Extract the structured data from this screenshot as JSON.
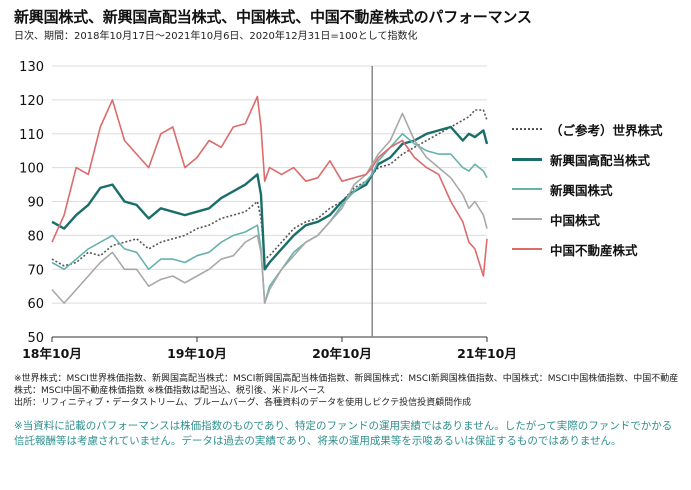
{
  "title": "新興国株式、新興国高配当株式、中国株式、中国不動産株式のパフォーマンス",
  "subtitle": "日次、期間：2018年10月17日～2021年10月6日、2020年12月31日=100として指数化",
  "notes": {
    "line1": "※世界株式：MSCI世界株価指数、新興国高配当株式：MSCI新興国高配当株価指数、新興国株式：MSCI新興国株価指数、中国株式：MSCI中国株価指数、中国不動産株式：MSCI中国不動産株価指数 ※株価指数は配当込、税引後、米ドルベース",
    "line2": "出所：リフィニティブ・データストリーム、ブルームバーグ、各種資料のデータを使用しピクテ投信投資顧問作成"
  },
  "disclaimer": "※当資料に記載のパフォーマンスは株価指数のものであり、特定のファンドの運用実績ではありません。したがって実際のファンドでかかる信託報酬等は考慮されていません。データは過去の実績であり、将来の運用成果等を示唆あるいは保証するものではありません。",
  "chart_data": {
    "type": "line",
    "title": "新興国株式、新興国高配当株式、中国株式、中国不動産株式のパフォーマンス",
    "ylim": [
      50,
      130
    ],
    "yticks": [
      50,
      60,
      70,
      80,
      90,
      100,
      110,
      120,
      130
    ],
    "x_tick_labels": [
      "18年10月",
      "19年10月",
      "20年10月",
      "21年10月"
    ],
    "x_tick_positions": [
      0,
      12,
      24,
      36
    ],
    "xlim": [
      0,
      36
    ],
    "reference_x": 26.5,
    "grid": "horizontal",
    "legend_position": "right",
    "x_unit": "months since 2018-10",
    "x": [
      0,
      1,
      2,
      3,
      4,
      5,
      6,
      7,
      8,
      9,
      10,
      11,
      12,
      13,
      14,
      15,
      16,
      17,
      17.3,
      17.6,
      18,
      19,
      20,
      21,
      22,
      23,
      24,
      25,
      26,
      26.5,
      27,
      28,
      29,
      30,
      31,
      32,
      33,
      34,
      34.5,
      35,
      35.7,
      36
    ],
    "series": [
      {
        "name": "（ご参考）世界株式",
        "color": "#555555",
        "dash": "2,2",
        "values": [
          73,
          71,
          72,
          75,
          74,
          77,
          78,
          79,
          76,
          78,
          79,
          80,
          82,
          83,
          85,
          86,
          87,
          90,
          85,
          73,
          74,
          78,
          82,
          84,
          85,
          88,
          90,
          94,
          96,
          98,
          100,
          101,
          104,
          106,
          108,
          110,
          112,
          114,
          115,
          117,
          117,
          114
        ]
      },
      {
        "name": "新興国高配当株式",
        "color": "#1a6e6a",
        "dash": "",
        "values": [
          84,
          82,
          86,
          89,
          94,
          95,
          90,
          89,
          85,
          88,
          87,
          86,
          87,
          88,
          91,
          93,
          95,
          98,
          92,
          70,
          72,
          76,
          80,
          83,
          84,
          86,
          90,
          93,
          95,
          98,
          101,
          103,
          107,
          108,
          110,
          111,
          112,
          108,
          110,
          109,
          111,
          107
        ]
      },
      {
        "name": "新興国株式",
        "color": "#66b3ad",
        "dash": "",
        "values": [
          72,
          70,
          73,
          76,
          78,
          80,
          76,
          75,
          70,
          73,
          73,
          72,
          74,
          75,
          78,
          80,
          81,
          83,
          76,
          60,
          65,
          70,
          75,
          78,
          80,
          84,
          89,
          93,
          96,
          98,
          102,
          106,
          110,
          107,
          105,
          104,
          104,
          100,
          99,
          101,
          99,
          97
        ]
      },
      {
        "name": "中国株式",
        "color": "#a8a8a8",
        "dash": "",
        "values": [
          64,
          60,
          64,
          68,
          72,
          75,
          70,
          70,
          65,
          67,
          68,
          66,
          68,
          70,
          73,
          74,
          78,
          80,
          75,
          60,
          64,
          70,
          74,
          78,
          80,
          84,
          88,
          95,
          98,
          101,
          104,
          108,
          116,
          108,
          103,
          100,
          97,
          92,
          88,
          90,
          86,
          82
        ]
      },
      {
        "name": "中国不動産株式",
        "color": "#dd6b6b",
        "dash": "",
        "values": [
          78,
          86,
          100,
          98,
          112,
          120,
          108,
          104,
          100,
          110,
          112,
          100,
          103,
          108,
          106,
          112,
          113,
          121,
          112,
          96,
          100,
          98,
          100,
          96,
          97,
          102,
          96,
          97,
          98,
          100,
          103,
          106,
          108,
          103,
          100,
          98,
          90,
          84,
          78,
          76,
          68,
          79
        ]
      }
    ]
  }
}
